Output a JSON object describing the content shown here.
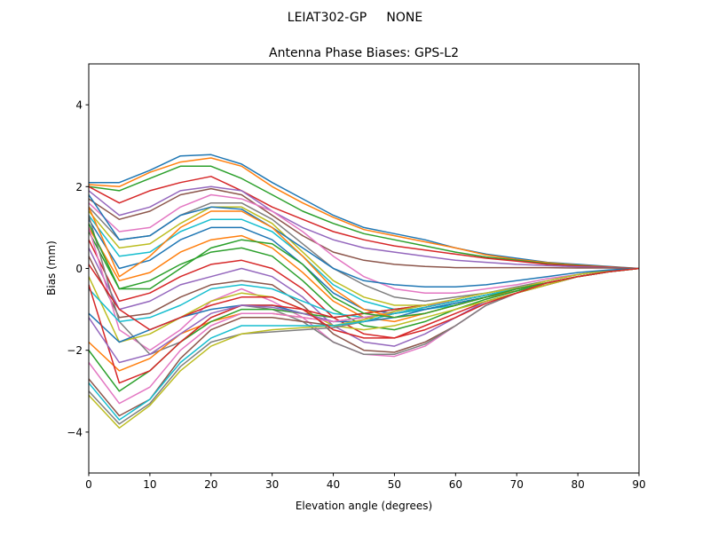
{
  "chart_data": {
    "type": "line",
    "suptitle": "LEIAT302-GP     NONE",
    "title": "Antenna Phase Biases: GPS-L2",
    "xlabel": "Elevation angle (degrees)",
    "ylabel": "Bias (mm)",
    "xlim": [
      0,
      90
    ],
    "ylim": [
      -5,
      5
    ],
    "xticks": [
      0,
      10,
      20,
      30,
      40,
      50,
      60,
      70,
      80,
      90
    ],
    "yticks": [
      -4,
      -2,
      0,
      2,
      4
    ],
    "ytick_labels": [
      "−4",
      "−2",
      "0",
      "2",
      "4"
    ],
    "grid": false,
    "colors": [
      "#1f77b4",
      "#ff7f0e",
      "#2ca02c",
      "#d62728",
      "#9467bd",
      "#8c564b",
      "#e377c2",
      "#7f7f7f",
      "#bcbd22",
      "#17becf"
    ],
    "x": [
      0,
      5,
      10,
      15,
      20,
      25,
      30,
      35,
      40,
      45,
      50,
      55,
      60,
      65,
      70,
      75,
      80,
      85,
      90
    ],
    "series": [
      [
        2.1,
        2.1,
        2.4,
        2.75,
        2.78,
        2.55,
        2.1,
        1.7,
        1.3,
        1.0,
        0.85,
        0.7,
        0.5,
        0.35,
        0.25,
        0.15,
        0.1,
        0.05,
        0
      ],
      [
        2.05,
        2.0,
        2.35,
        2.6,
        2.7,
        2.5,
        2.0,
        1.6,
        1.25,
        0.95,
        0.8,
        0.65,
        0.5,
        0.33,
        0.22,
        0.14,
        0.08,
        0.04,
        0
      ],
      [
        2.0,
        1.9,
        2.2,
        2.5,
        2.5,
        2.2,
        1.8,
        1.4,
        1.1,
        0.85,
        0.7,
        0.55,
        0.4,
        0.28,
        0.2,
        0.12,
        0.07,
        0.03,
        0
      ],
      [
        2.0,
        1.6,
        1.9,
        2.1,
        2.25,
        1.9,
        1.5,
        1.2,
        0.9,
        0.7,
        0.55,
        0.45,
        0.35,
        0.25,
        0.18,
        0.1,
        0.06,
        0.03,
        0
      ],
      [
        1.9,
        1.3,
        1.5,
        1.9,
        2.0,
        1.9,
        1.4,
        1.0,
        0.7,
        0.5,
        0.4,
        0.3,
        0.2,
        0.15,
        0.1,
        0.07,
        0.04,
        0.02,
        0
      ],
      [
        1.7,
        1.2,
        1.4,
        1.8,
        1.95,
        1.8,
        1.3,
        0.8,
        0.4,
        0.2,
        0.1,
        0.05,
        0.02,
        0.02,
        0.02,
        0.02,
        0.01,
        0.01,
        0
      ],
      [
        1.6,
        0.9,
        1.0,
        1.5,
        1.8,
        1.7,
        1.4,
        0.9,
        0.3,
        -0.2,
        -0.5,
        -0.6,
        -0.6,
        -0.5,
        -0.4,
        -0.25,
        -0.15,
        -0.05,
        0
      ],
      [
        1.5,
        0.7,
        0.8,
        1.3,
        1.6,
        1.6,
        1.2,
        0.6,
        0.0,
        -0.4,
        -0.7,
        -0.8,
        -0.7,
        -0.6,
        -0.45,
        -0.3,
        -0.15,
        -0.05,
        0
      ],
      [
        1.4,
        0.5,
        0.6,
        1.1,
        1.5,
        1.5,
        1.1,
        0.4,
        -0.3,
        -0.7,
        -0.9,
        -0.9,
        -0.8,
        -0.65,
        -0.5,
        -0.3,
        -0.15,
        -0.05,
        0
      ],
      [
        1.3,
        0.3,
        0.4,
        0.9,
        1.2,
        1.2,
        0.9,
        0.3,
        -0.4,
        -0.8,
        -1.0,
        -1.0,
        -0.9,
        -0.7,
        -0.55,
        -0.35,
        -0.2,
        -0.08,
        0
      ],
      [
        1.2,
        0.0,
        0.2,
        0.7,
        1.0,
        1.0,
        0.7,
        0.1,
        -0.6,
        -1.0,
        -1.1,
        -1.0,
        -0.85,
        -0.7,
        -0.55,
        -0.35,
        -0.2,
        -0.08,
        0
      ],
      [
        1.0,
        -0.3,
        -0.1,
        0.4,
        0.7,
        0.8,
        0.5,
        -0.1,
        -0.8,
        -1.2,
        -1.3,
        -1.1,
        -0.9,
        -0.7,
        -0.55,
        -0.35,
        -0.2,
        -0.08,
        0
      ],
      [
        0.9,
        -0.5,
        -0.3,
        0.1,
        0.4,
        0.5,
        0.3,
        -0.3,
        -1.0,
        -1.4,
        -1.5,
        -1.3,
        -1.0,
        -0.75,
        -0.55,
        -0.35,
        -0.2,
        -0.08,
        0
      ],
      [
        0.7,
        -0.8,
        -0.6,
        -0.2,
        0.1,
        0.2,
        0.0,
        -0.5,
        -1.2,
        -1.6,
        -1.7,
        -1.4,
        -1.1,
        -0.8,
        -0.6,
        -0.4,
        -0.2,
        -0.08,
        0
      ],
      [
        0.5,
        -1.0,
        -0.8,
        -0.4,
        -0.2,
        0.0,
        -0.2,
        -0.7,
        -1.4,
        -1.8,
        -1.9,
        -1.6,
        -1.2,
        -0.8,
        -0.6,
        -0.4,
        -0.2,
        -0.08,
        0
      ],
      [
        0.3,
        -1.2,
        -1.1,
        -0.7,
        -0.4,
        -0.3,
        -0.4,
        -0.9,
        -1.6,
        -2.0,
        -2.05,
        -1.8,
        -1.4,
        -0.9,
        -0.6,
        -0.4,
        -0.2,
        -0.08,
        0
      ],
      [
        1.0,
        -1.5,
        -2.0,
        -1.5,
        -0.8,
        -0.5,
        -0.8,
        -1.2,
        -1.8,
        -2.1,
        -2.15,
        -1.9,
        -1.4,
        -0.9,
        -0.6,
        -0.35,
        -0.2,
        -0.08,
        0
      ],
      [
        1.3,
        -1.3,
        -2.1,
        -1.8,
        -1.2,
        -0.9,
        -1.0,
        -1.3,
        -1.8,
        -2.1,
        -2.1,
        -1.85,
        -1.4,
        -0.9,
        -0.6,
        -0.35,
        -0.2,
        -0.08,
        0
      ],
      [
        -0.2,
        -1.8,
        -1.6,
        -1.2,
        -0.8,
        -0.6,
        -0.7,
        -1.0,
        -1.4,
        -1.5,
        -1.4,
        -1.2,
        -1.0,
        -0.8,
        -0.6,
        -0.4,
        -0.2,
        -0.08,
        0
      ],
      [
        -0.5,
        -1.3,
        -1.2,
        -0.9,
        -0.5,
        -0.4,
        -0.5,
        -0.8,
        -1.1,
        -1.2,
        -1.1,
        -1.0,
        -0.85,
        -0.7,
        -0.5,
        -0.35,
        -0.2,
        -0.08,
        0
      ],
      [
        -1.1,
        -1.8,
        -1.5,
        -1.2,
        -1.0,
        -0.9,
        -0.9,
        -1.1,
        -1.3,
        -1.3,
        -1.2,
        -1.0,
        -0.85,
        -0.7,
        -0.5,
        -0.35,
        -0.2,
        -0.08,
        0
      ],
      [
        -1.8,
        -2.5,
        -2.2,
        -1.6,
        -1.3,
        -1.1,
        -1.1,
        -1.2,
        -1.3,
        -1.2,
        -1.1,
        -0.95,
        -0.8,
        -0.65,
        -0.5,
        -0.35,
        -0.2,
        -0.08,
        0
      ],
      [
        -2.0,
        -3.0,
        -2.5,
        -1.8,
        -1.3,
        -1.0,
        -1.0,
        -1.1,
        -1.2,
        -1.1,
        -1.0,
        -0.9,
        -0.8,
        -0.65,
        -0.5,
        -0.35,
        -0.2,
        -0.08,
        0
      ],
      [
        -0.4,
        -2.8,
        -2.5,
        -1.8,
        -1.2,
        -0.9,
        -0.9,
        -1.0,
        -1.2,
        -1.1,
        -1.0,
        -0.9,
        -0.8,
        -0.65,
        -0.5,
        -0.35,
        -0.2,
        -0.08,
        0
      ],
      [
        -1.2,
        -2.3,
        -2.1,
        -1.6,
        -1.1,
        -0.9,
        -0.95,
        -1.1,
        -1.3,
        -1.2,
        -1.1,
        -0.95,
        -0.8,
        -0.65,
        -0.5,
        -0.35,
        -0.2,
        -0.08,
        0
      ],
      [
        -2.7,
        -3.6,
        -3.2,
        -2.2,
        -1.5,
        -1.2,
        -1.2,
        -1.3,
        -1.4,
        -1.3,
        -1.1,
        -0.95,
        -0.8,
        -0.65,
        -0.5,
        -0.35,
        -0.2,
        -0.08,
        0
      ],
      [
        -2.3,
        -3.3,
        -2.9,
        -2.0,
        -1.4,
        -1.1,
        -1.1,
        -1.2,
        -1.3,
        -1.2,
        -1.05,
        -0.9,
        -0.8,
        -0.65,
        -0.5,
        -0.35,
        -0.2,
        -0.08,
        0
      ],
      [
        -3.0,
        -3.8,
        -3.3,
        -2.4,
        -1.8,
        -1.6,
        -1.55,
        -1.5,
        -1.45,
        -1.3,
        -1.1,
        -0.95,
        -0.8,
        -0.65,
        -0.5,
        -0.35,
        -0.2,
        -0.08,
        0
      ],
      [
        -3.1,
        -3.9,
        -3.35,
        -2.5,
        -1.9,
        -1.6,
        -1.5,
        -1.45,
        -1.4,
        -1.25,
        -1.05,
        -0.9,
        -0.75,
        -0.6,
        -0.48,
        -0.35,
        -0.2,
        -0.08,
        0
      ],
      [
        -2.8,
        -3.7,
        -3.2,
        -2.3,
        -1.7,
        -1.4,
        -1.4,
        -1.4,
        -1.4,
        -1.3,
        -1.1,
        -0.95,
        -0.8,
        -0.65,
        -0.5,
        -0.35,
        -0.2,
        -0.08,
        0
      ],
      [
        1.8,
        0.7,
        0.8,
        1.3,
        1.5,
        1.45,
        1.0,
        0.5,
        0.0,
        -0.3,
        -0.4,
        -0.45,
        -0.45,
        -0.4,
        -0.3,
        -0.2,
        -0.1,
        -0.04,
        0
      ],
      [
        1.5,
        -0.2,
        0.3,
        1.0,
        1.4,
        1.4,
        1.0,
        0.3,
        -0.5,
        -1.0,
        -1.2,
        -1.1,
        -0.9,
        -0.7,
        -0.5,
        -0.35,
        -0.2,
        -0.08,
        0
      ],
      [
        1.1,
        -0.5,
        -0.5,
        0.0,
        0.5,
        0.7,
        0.6,
        0.1,
        -0.7,
        -1.1,
        -1.2,
        -1.1,
        -0.9,
        -0.7,
        -0.5,
        -0.35,
        -0.2,
        -0.08,
        0
      ],
      [
        0.1,
        -1.0,
        -1.5,
        -1.2,
        -0.9,
        -0.7,
        -0.7,
        -1.0,
        -1.5,
        -1.7,
        -1.7,
        -1.5,
        -1.2,
        -0.85,
        -0.6,
        -0.35,
        -0.2,
        -0.08,
        0
      ]
    ]
  }
}
